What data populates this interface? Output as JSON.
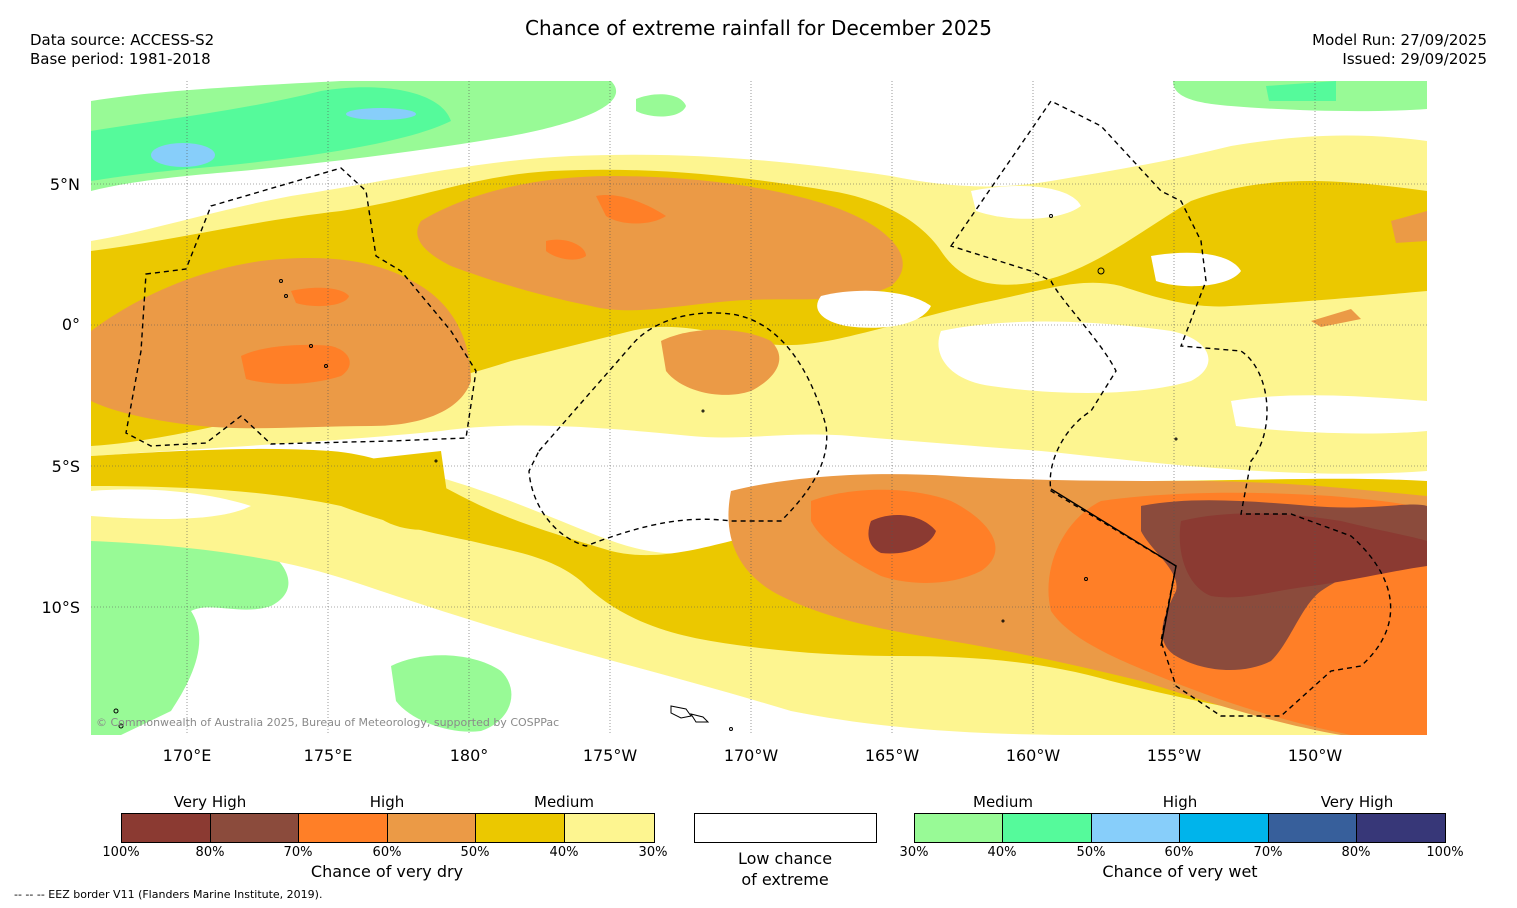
{
  "title": "Chance of extreme rainfall for December 2025",
  "meta_left": {
    "source": "Data source: ACCESS-S2",
    "base": "Base period: 1981-2018"
  },
  "meta_right": {
    "run": "Model Run: 27/09/2025",
    "issued": "Issued: 29/09/2025"
  },
  "lat_labels": [
    "5°N",
    "0°",
    "5°S",
    "10°S"
  ],
  "lon_labels": [
    "170°E",
    "175°E",
    "180°",
    "175°W",
    "170°W",
    "165°W",
    "160°W",
    "155°W",
    "150°W"
  ],
  "copyright": "© Commonwealth of Australia 2025, Bureau of Meteorology, supported by COSPPac",
  "legend_dry": {
    "levels": [
      "Very High",
      "High",
      "Medium"
    ],
    "ticks": [
      "100%",
      "80%",
      "70%",
      "60%",
      "50%",
      "40%",
      "30%"
    ],
    "caption": "Chance of very dry",
    "colors": [
      "#8b3a32",
      "#8b4b3c",
      "#ff7f27",
      "#eb9a46",
      "#ebc800",
      "#fdf590"
    ]
  },
  "legend_low": {
    "line1": "Low chance",
    "line2": "of extreme",
    "color": "#ffffff"
  },
  "legend_wet": {
    "levels": [
      "Medium",
      "High",
      "Very High"
    ],
    "ticks": [
      "30%",
      "40%",
      "50%",
      "60%",
      "70%",
      "80%",
      "100%"
    ],
    "caption": "Chance of very wet",
    "colors": [
      "#98fa96",
      "#55fa9b",
      "#87cefa",
      "#00b4eb",
      "#375f9b",
      "#373778"
    ]
  },
  "eez_note": "--  --  -- EEZ border V11 (Flanders Marine Institute, 2019)."
}
